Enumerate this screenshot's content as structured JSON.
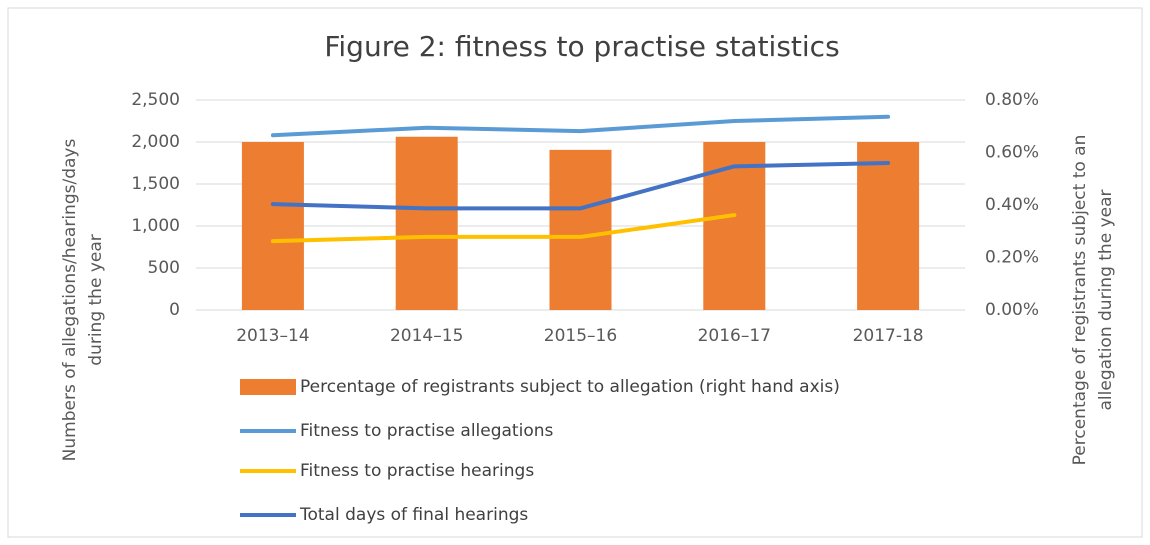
{
  "chart_data": {
    "type": "bar_line",
    "title": "Figure 2: fitness to practise statistics",
    "ylabel": [
      "Numbers of allegations/hearings/days",
      "during the year"
    ],
    "y2label": [
      "Percentage of registrants subject to an",
      "allegation during the year"
    ],
    "categories": [
      "2013–14",
      "2014–15",
      "2015–16",
      "2016–17",
      "2017-18"
    ],
    "series": [
      {
        "name": "Percentage of registrants subject to allegation (right hand axis)",
        "type": "bar",
        "axis": "y2",
        "color": "#ed7d31",
        "values": [
          0.64,
          0.66,
          0.61,
          0.64,
          0.64
        ]
      },
      {
        "name": "Fitness to practise allegations",
        "type": "line",
        "color": "#5b9bd5",
        "values": [
          2080,
          2170,
          2130,
          2250,
          2300
        ]
      },
      {
        "name": "Fitness to practise hearings",
        "type": "line",
        "color": "#ffc000",
        "values": [
          820,
          870,
          870,
          1130,
          null
        ]
      },
      {
        "name": "Total days of final hearings",
        "type": "line",
        "color": "#4472c4",
        "values": [
          1260,
          1210,
          1210,
          1710,
          1750
        ]
      }
    ],
    "ylim": [
      0,
      2500
    ],
    "yticks": [
      0,
      500,
      {
        "value": 1000,
        "label": "1,000"
      },
      {
        "value": 1500,
        "label": "1,500"
      },
      {
        "value": 2000,
        "label": "2,000"
      },
      {
        "value": 2500,
        "label": "2,500"
      }
    ],
    "y2lim": [
      0,
      0.8
    ],
    "y2ticks": [
      {
        "value": 0,
        "label": "0.00%"
      },
      {
        "value": 0.2,
        "label": "0.20%"
      },
      {
        "value": 0.4,
        "label": "0.40%"
      },
      {
        "value": 0.6,
        "label": "0.60%"
      },
      {
        "value": 0.8,
        "label": "0.80%"
      }
    ],
    "grid": true,
    "legend": "bottom"
  }
}
